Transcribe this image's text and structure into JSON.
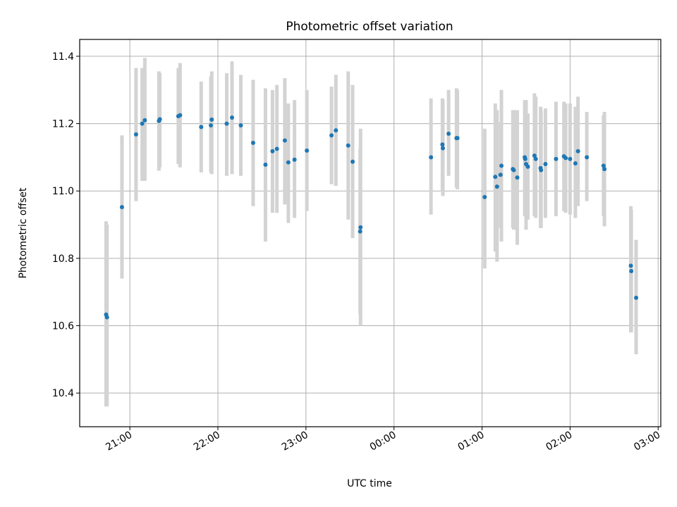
{
  "chart_data": {
    "type": "scatter",
    "title": "Photometric offset variation",
    "xlabel": "UTC time",
    "ylabel": "Photometric offset",
    "x_unit": "hours since 00:00 UTC",
    "xlim": [
      -3.57,
      3.03
    ],
    "ylim": [
      10.3,
      11.45
    ],
    "xticks": [
      -3,
      -2,
      -1,
      0,
      1,
      2,
      3
    ],
    "xtick_labels": [
      "21:00",
      "22:00",
      "23:00",
      "00:00",
      "01:00",
      "02:00",
      "03:00"
    ],
    "yticks": [
      10.4,
      10.6,
      10.8,
      11.0,
      11.2,
      11.4
    ],
    "ytick_labels": [
      "10.4",
      "10.6",
      "10.8",
      "11.0",
      "11.2",
      "11.4"
    ],
    "grid": true,
    "colors": {
      "points": "#1f77b4",
      "errorbars": "#d3d3d3"
    },
    "points": [
      {
        "x": -3.27,
        "y": 10.633,
        "low": 10.36,
        "high": 10.91
      },
      {
        "x": -3.26,
        "y": 10.625,
        "low": 10.36,
        "high": 10.9
      },
      {
        "x": -3.09,
        "y": 10.952,
        "low": 10.74,
        "high": 11.165
      },
      {
        "x": -2.93,
        "y": 11.168,
        "low": 10.97,
        "high": 11.365
      },
      {
        "x": -2.86,
        "y": 11.2,
        "low": 11.03,
        "high": 11.365
      },
      {
        "x": -2.83,
        "y": 11.21,
        "low": 11.03,
        "high": 11.395
      },
      {
        "x": -2.67,
        "y": 11.208,
        "low": 11.06,
        "high": 11.355
      },
      {
        "x": -2.66,
        "y": 11.213,
        "low": 11.07,
        "high": 11.35
      },
      {
        "x": -2.45,
        "y": 11.222,
        "low": 11.08,
        "high": 11.365
      },
      {
        "x": -2.43,
        "y": 11.225,
        "low": 11.07,
        "high": 11.38
      },
      {
        "x": -2.19,
        "y": 11.19,
        "low": 11.055,
        "high": 11.325
      },
      {
        "x": -2.08,
        "y": 11.195,
        "low": 11.055,
        "high": 11.34
      },
      {
        "x": -2.07,
        "y": 11.212,
        "low": 11.05,
        "high": 11.355
      },
      {
        "x": -1.9,
        "y": 11.2,
        "low": 11.045,
        "high": 11.35
      },
      {
        "x": -1.84,
        "y": 11.218,
        "low": 11.05,
        "high": 11.385
      },
      {
        "x": -1.74,
        "y": 11.195,
        "low": 11.045,
        "high": 11.345
      },
      {
        "x": -1.6,
        "y": 11.143,
        "low": 10.955,
        "high": 11.33
      },
      {
        "x": -1.46,
        "y": 11.078,
        "low": 10.85,
        "high": 11.305
      },
      {
        "x": -1.38,
        "y": 11.118,
        "low": 10.935,
        "high": 11.3
      },
      {
        "x": -1.33,
        "y": 11.125,
        "low": 10.935,
        "high": 11.315
      },
      {
        "x": -1.24,
        "y": 11.15,
        "low": 10.96,
        "high": 11.335
      },
      {
        "x": -1.2,
        "y": 11.085,
        "low": 10.905,
        "high": 11.26
      },
      {
        "x": -1.13,
        "y": 11.093,
        "low": 10.92,
        "high": 11.27
      },
      {
        "x": -0.99,
        "y": 11.12,
        "low": 10.94,
        "high": 11.3
      },
      {
        "x": -0.71,
        "y": 11.165,
        "low": 11.02,
        "high": 11.31
      },
      {
        "x": -0.66,
        "y": 11.18,
        "low": 11.015,
        "high": 11.345
      },
      {
        "x": -0.52,
        "y": 11.135,
        "low": 10.915,
        "high": 11.355
      },
      {
        "x": -0.47,
        "y": 11.087,
        "low": 10.86,
        "high": 11.315
      },
      {
        "x": -0.38,
        "y": 10.892,
        "low": 10.6,
        "high": 11.185
      },
      {
        "x": -0.385,
        "y": 10.88,
        "low": 10.635,
        "high": 11.125
      },
      {
        "x": 0.42,
        "y": 11.1,
        "low": 10.93,
        "high": 11.275
      },
      {
        "x": 0.55,
        "y": 11.138,
        "low": 11.0,
        "high": 11.275
      },
      {
        "x": 0.555,
        "y": 11.127,
        "low": 10.985,
        "high": 11.27
      },
      {
        "x": 0.62,
        "y": 11.17,
        "low": 11.045,
        "high": 11.3
      },
      {
        "x": 0.71,
        "y": 11.157,
        "low": 11.01,
        "high": 11.305
      },
      {
        "x": 0.72,
        "y": 11.157,
        "low": 11.005,
        "high": 11.3
      },
      {
        "x": 1.03,
        "y": 10.982,
        "low": 10.77,
        "high": 11.185
      },
      {
        "x": 1.15,
        "y": 11.042,
        "low": 10.82,
        "high": 11.26
      },
      {
        "x": 1.17,
        "y": 11.013,
        "low": 10.79,
        "high": 11.24
      },
      {
        "x": 1.21,
        "y": 11.048,
        "low": 10.89,
        "high": 11.205
      },
      {
        "x": 1.22,
        "y": 11.075,
        "low": 10.85,
        "high": 11.3
      },
      {
        "x": 1.35,
        "y": 11.065,
        "low": 10.89,
        "high": 11.24
      },
      {
        "x": 1.36,
        "y": 11.062,
        "low": 10.885,
        "high": 11.24
      },
      {
        "x": 1.4,
        "y": 11.04,
        "low": 10.84,
        "high": 11.24
      },
      {
        "x": 1.485,
        "y": 11.1,
        "low": 10.925,
        "high": 11.27
      },
      {
        "x": 1.49,
        "y": 11.095,
        "low": 10.93,
        "high": 11.265
      },
      {
        "x": 1.5,
        "y": 11.08,
        "low": 10.885,
        "high": 11.27
      },
      {
        "x": 1.52,
        "y": 11.072,
        "low": 10.915,
        "high": 11.23
      },
      {
        "x": 1.595,
        "y": 11.105,
        "low": 10.925,
        "high": 11.29
      },
      {
        "x": 1.61,
        "y": 11.095,
        "low": 10.92,
        "high": 11.28
      },
      {
        "x": 1.665,
        "y": 11.068,
        "low": 10.89,
        "high": 11.25
      },
      {
        "x": 1.67,
        "y": 11.062,
        "low": 10.89,
        "high": 11.24
      },
      {
        "x": 1.72,
        "y": 11.08,
        "low": 10.92,
        "high": 11.245
      },
      {
        "x": 1.84,
        "y": 11.095,
        "low": 10.925,
        "high": 11.265
      },
      {
        "x": 1.93,
        "y": 11.103,
        "low": 10.94,
        "high": 11.265
      },
      {
        "x": 1.95,
        "y": 11.098,
        "low": 10.935,
        "high": 11.26
      },
      {
        "x": 2.0,
        "y": 11.095,
        "low": 10.93,
        "high": 11.26
      },
      {
        "x": 2.06,
        "y": 11.082,
        "low": 10.92,
        "high": 11.25
      },
      {
        "x": 2.09,
        "y": 11.118,
        "low": 10.955,
        "high": 11.28
      },
      {
        "x": 2.19,
        "y": 11.1,
        "low": 10.97,
        "high": 11.235
      },
      {
        "x": 2.38,
        "y": 11.075,
        "low": 10.925,
        "high": 11.225
      },
      {
        "x": 2.39,
        "y": 11.065,
        "low": 10.895,
        "high": 11.235
      },
      {
        "x": 2.69,
        "y": 10.778,
        "low": 10.58,
        "high": 10.955
      },
      {
        "x": 2.695,
        "y": 10.762,
        "low": 10.58,
        "high": 10.945
      },
      {
        "x": 2.75,
        "y": 10.683,
        "low": 10.515,
        "high": 10.855
      }
    ]
  }
}
